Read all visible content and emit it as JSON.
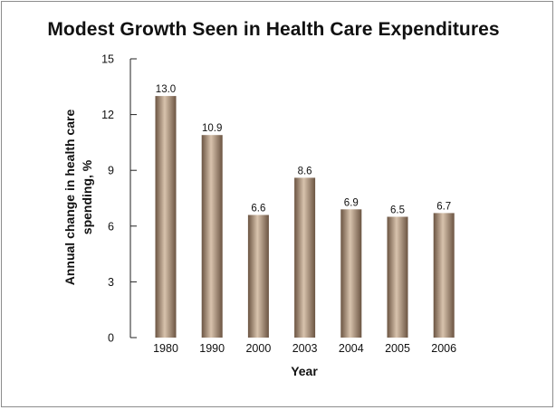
{
  "chart_data": {
    "type": "bar",
    "title": "Modest Growth Seen in Health Care Expenditures",
    "xlabel": "Year",
    "ylabel_lines": [
      "Annual change in health care",
      "spending, %"
    ],
    "categories": [
      "1980",
      "1990",
      "2000",
      "2003",
      "2004",
      "2005",
      "2006"
    ],
    "values": [
      13.0,
      10.9,
      6.6,
      8.6,
      6.9,
      6.5,
      6.7
    ],
    "value_labels": [
      "13.0",
      "10.9",
      "6.6",
      "8.6",
      "6.9",
      "6.5",
      "6.7"
    ],
    "ylim": [
      0,
      15
    ],
    "yticks": [
      0,
      3,
      6,
      9,
      12,
      15
    ],
    "grid": false,
    "bar_colors": {
      "dark": "#6b5442",
      "mid": "#b59a80",
      "light": "#d8c3ad"
    }
  }
}
